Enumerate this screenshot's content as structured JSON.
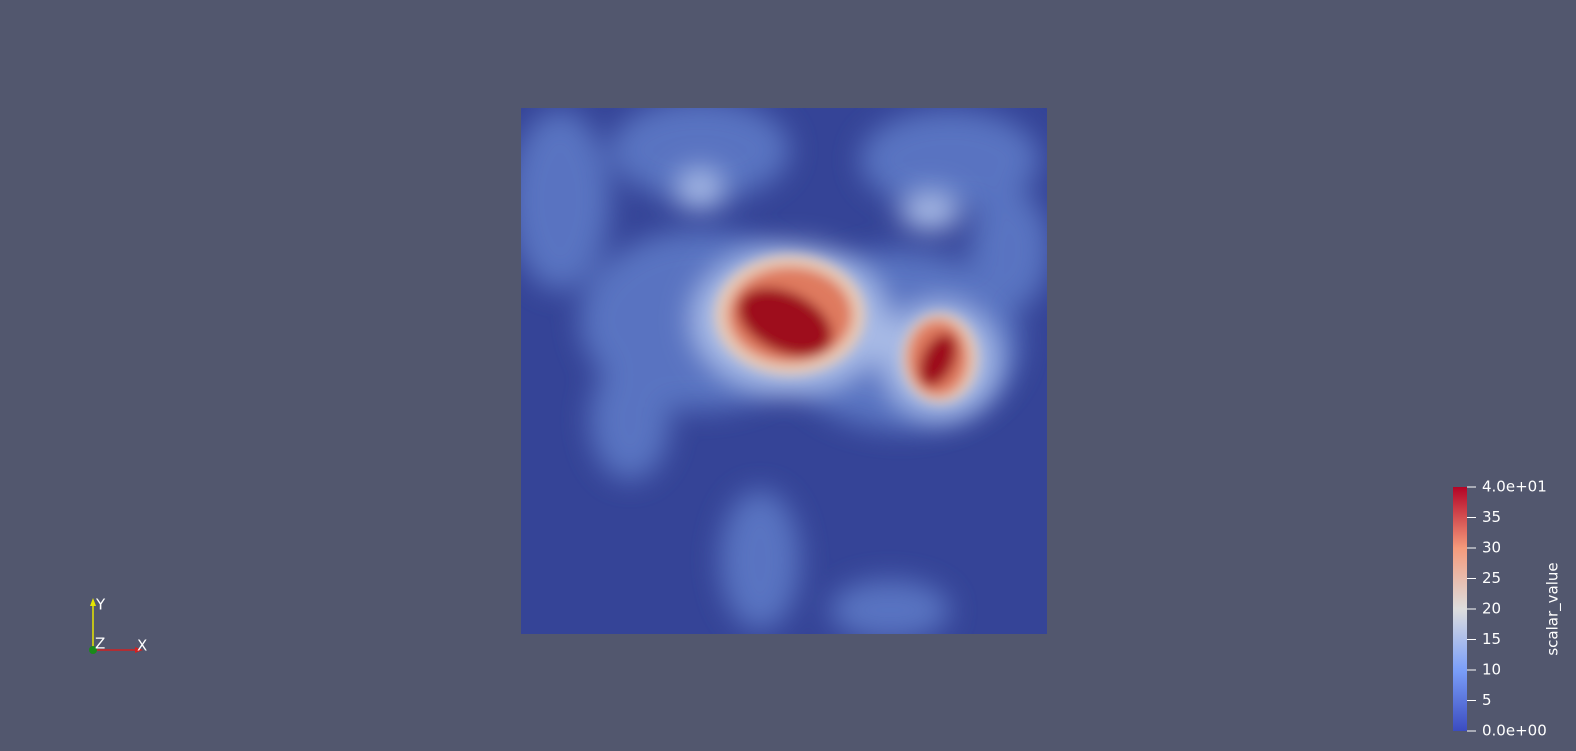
{
  "axes_widget": {
    "x_label": "X",
    "y_label": "Y",
    "z_label": "Z"
  },
  "colorbar": {
    "title": "scalar_value",
    "range": [
      0,
      40
    ],
    "ticks": [
      {
        "value": 0,
        "label": "0.0e+00"
      },
      5,
      10,
      15,
      20,
      25,
      30,
      35,
      {
        "value": 40,
        "label": "4.0e+01"
      }
    ]
  }
}
